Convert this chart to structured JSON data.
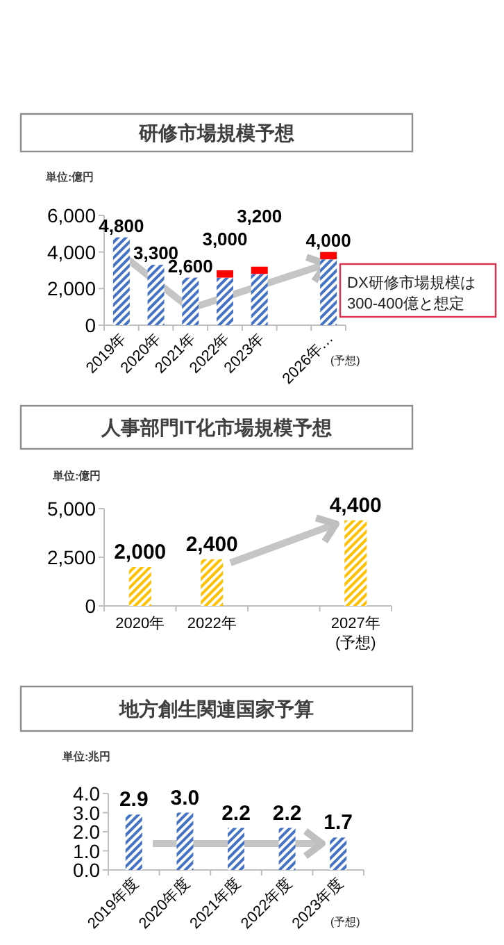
{
  "chart_data": [
    {
      "type": "bar",
      "title": "研修市場規模予想",
      "ylabel": "単位:億円",
      "categories": [
        "2019年",
        "2020年",
        "2021年",
        "2022年",
        "2023年",
        null,
        "2026年…"
      ],
      "stacked": true,
      "series": [
        {
          "color": "#4472c4",
          "values": [
            4800,
            3300,
            2600,
            2600,
            2800,
            null,
            3600
          ]
        },
        {
          "color": "#ff0000",
          "values": [
            null,
            null,
            null,
            400,
            400,
            null,
            400
          ]
        }
      ],
      "totals": [
        "4,800",
        "3,300",
        "2,600",
        "3,000",
        "3,200",
        null,
        "4,000"
      ],
      "ylim": [
        0,
        6000
      ],
      "yticks": [
        0,
        {
          "value": 2000,
          "label": "2,000"
        },
        {
          "value": 4000,
          "label": "4,000"
        },
        {
          "value": 6000,
          "label": "6,000"
        }
      ],
      "annotations": [
        "(予想)",
        "DX研修市場規模は\n300-400億と想定"
      ]
    },
    {
      "type": "bar",
      "title": "人事部門IT化市場規模予想",
      "ylabel": "単位:億円",
      "categories": [
        "2020年",
        "2022年",
        null,
        "2027年\n(予想)"
      ],
      "values": [
        2000,
        2400,
        null,
        4400
      ],
      "color": "#ffc000",
      "value_labels": [
        "2,000",
        "2,400",
        null,
        "4,400"
      ],
      "ylim": [
        0,
        5000
      ],
      "yticks": [
        0,
        {
          "value": 2500,
          "label": "2,500"
        },
        {
          "value": 5000,
          "label": "5,000"
        }
      ]
    },
    {
      "type": "bar",
      "title": "地方創生関連国家予算",
      "ylabel": "単位:兆円",
      "categories": [
        "2019年度",
        "2020年度",
        "2021年度",
        "2022年度",
        "2023年度"
      ],
      "values": [
        2.9,
        3.0,
        2.2,
        2.2,
        1.7
      ],
      "color": "#4472c4",
      "value_labels": [
        "2.9",
        "3.0",
        "2.2",
        "2.2",
        "1.7"
      ],
      "ylim": [
        0,
        4
      ],
      "yticks": [
        {
          "value": 0,
          "label": "0.0"
        },
        {
          "value": 1,
          "label": "1.0"
        },
        {
          "value": 2,
          "label": "2.0"
        },
        {
          "value": 3,
          "label": "3.0"
        },
        {
          "value": 4,
          "label": "4.0"
        }
      ],
      "annotations": [
        "(予想)"
      ]
    }
  ]
}
